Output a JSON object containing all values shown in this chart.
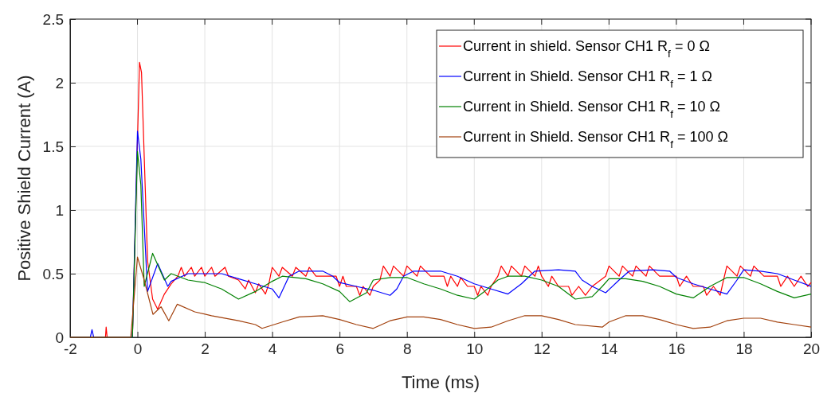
{
  "chart_data": {
    "type": "line",
    "xlabel": "Time (ms)",
    "ylabel": "Positive Shield Current (A)",
    "xlim": [
      -2,
      20
    ],
    "xticks": [
      -2,
      0,
      2,
      4,
      6,
      8,
      10,
      12,
      14,
      16,
      18,
      20
    ],
    "ylim": [
      0,
      2.5
    ],
    "yticks": [
      0,
      0.5,
      1,
      1.5,
      2,
      2.5
    ],
    "grid": true,
    "legend": "top right",
    "line_style": "solid",
    "marker": "none",
    "series": [
      {
        "name": "Current in shield. Sensor CH1 R$_{f}$ = 0 Ω",
        "color": "#ff0000",
        "x": [
          -2,
          -0.95,
          -0.93,
          -0.9,
          -0.15,
          0.06,
          0.12,
          0.3,
          0.45,
          0.6,
          0.8,
          1.0,
          1.2,
          1.3,
          1.4,
          1.6,
          1.7,
          1.9,
          2.0,
          2.2,
          2.3,
          2.6,
          2.7,
          3.0,
          3.2,
          3.3,
          3.5,
          3.6,
          3.8,
          3.9,
          4.0,
          4.2,
          4.3,
          4.6,
          4.7,
          5.0,
          5.1,
          5.3,
          5.9,
          6.0,
          6.1,
          6.2,
          6.5,
          6.6,
          6.7,
          6.9,
          7.0,
          7.2,
          7.3,
          7.5,
          7.6,
          7.9,
          8.0,
          8.3,
          8.4,
          8.7,
          9.1,
          9.2,
          9.3,
          9.5,
          9.6,
          9.8,
          10.0,
          10.1,
          10.2,
          10.4,
          10.5,
          10.7,
          10.8,
          11.0,
          11.1,
          11.4,
          11.5,
          11.8,
          11.9,
          12.0,
          12.2,
          12.3,
          12.5,
          12.8,
          12.9,
          13.1,
          13.3,
          13.5,
          13.9,
          14.0,
          14.3,
          14.4,
          14.7,
          14.8,
          15.1,
          15.2,
          15.5,
          16.0,
          16.1,
          16.3,
          16.5,
          16.8,
          16.9,
          17.1,
          17.3,
          17.4,
          17.5,
          17.8,
          17.9,
          18.2,
          18.3,
          18.6,
          19.0,
          19.1,
          19.3,
          19.5,
          19.7,
          19.9,
          20
        ],
        "values": [
          0,
          0,
          0.08,
          0,
          0,
          2.16,
          2.08,
          0.6,
          0.3,
          0.22,
          0.34,
          0.42,
          0.48,
          0.55,
          0.48,
          0.55,
          0.48,
          0.55,
          0.48,
          0.55,
          0.48,
          0.55,
          0.48,
          0.45,
          0.38,
          0.45,
          0.35,
          0.42,
          0.34,
          0.42,
          0.55,
          0.48,
          0.55,
          0.48,
          0.55,
          0.48,
          0.55,
          0.48,
          0.48,
          0.4,
          0.48,
          0.4,
          0.4,
          0.33,
          0.4,
          0.33,
          0.4,
          0.45,
          0.56,
          0.48,
          0.56,
          0.48,
          0.56,
          0.48,
          0.56,
          0.48,
          0.48,
          0.4,
          0.48,
          0.4,
          0.47,
          0.4,
          0.4,
          0.33,
          0.4,
          0.33,
          0.4,
          0.48,
          0.56,
          0.48,
          0.56,
          0.48,
          0.56,
          0.48,
          0.56,
          0.48,
          0.4,
          0.48,
          0.4,
          0.4,
          0.33,
          0.4,
          0.33,
          0.4,
          0.48,
          0.56,
          0.48,
          0.56,
          0.48,
          0.56,
          0.48,
          0.56,
          0.48,
          0.48,
          0.4,
          0.48,
          0.4,
          0.4,
          0.33,
          0.4,
          0.33,
          0.45,
          0.56,
          0.48,
          0.56,
          0.48,
          0.56,
          0.48,
          0.48,
          0.4,
          0.48,
          0.4,
          0.48,
          0.4,
          0.43
        ]
      },
      {
        "name": "Current in Shield. Sensor CH1 R$_{f}$ = 1 Ω",
        "color": "#0000ff",
        "x": [
          -2,
          -1.4,
          -1.35,
          -1.3,
          -0.15,
          0.0,
          0.1,
          0.3,
          0.6,
          0.9,
          1.0,
          1.5,
          2.0,
          2.5,
          3.0,
          3.5,
          4.0,
          4.2,
          4.5,
          4.8,
          5.5,
          5.8,
          6.0,
          6.5,
          7.0,
          7.5,
          7.7,
          7.9,
          8.2,
          9.0,
          9.5,
          10.0,
          10.5,
          11.0,
          11.4,
          11.8,
          12.5,
          13.0,
          13.2,
          13.5,
          13.9,
          14.3,
          14.6,
          15.3,
          15.8,
          16.0,
          16.5,
          17.0,
          17.5,
          17.8,
          18.0,
          18.5,
          19.0,
          19.5,
          20
        ],
        "values": [
          0,
          0,
          0.06,
          0,
          0,
          1.62,
          1.4,
          0.36,
          0.58,
          0.4,
          0.44,
          0.5,
          0.5,
          0.5,
          0.46,
          0.42,
          0.38,
          0.31,
          0.48,
          0.52,
          0.52,
          0.48,
          0.43,
          0.4,
          0.37,
          0.33,
          0.38,
          0.48,
          0.52,
          0.52,
          0.48,
          0.42,
          0.38,
          0.34,
          0.42,
          0.52,
          0.53,
          0.52,
          0.45,
          0.4,
          0.35,
          0.45,
          0.52,
          0.53,
          0.52,
          0.47,
          0.42,
          0.38,
          0.34,
          0.45,
          0.53,
          0.52,
          0.5,
          0.45,
          0.4
        ]
      },
      {
        "name": "Current in Shield. Sensor CH1 R$_{f}$ = 10 Ω",
        "color": "#008000",
        "x": [
          -2,
          -0.15,
          0.0,
          0.1,
          0.2,
          0.45,
          0.8,
          1.0,
          1.5,
          2.0,
          2.5,
          3.0,
          3.5,
          4.0,
          4.3,
          5.0,
          5.5,
          6.0,
          6.3,
          6.8,
          7.0,
          7.5,
          8.0,
          8.5,
          9.0,
          9.5,
          10.0,
          10.3,
          10.7,
          11.0,
          11.5,
          12.0,
          12.5,
          13.0,
          13.5,
          13.8,
          14.0,
          14.5,
          15.0,
          15.5,
          16.0,
          16.5,
          17.0,
          17.5,
          18.0,
          18.5,
          19.0,
          19.5,
          20
        ],
        "values": [
          0,
          0,
          1.46,
          1.2,
          0.4,
          0.66,
          0.45,
          0.5,
          0.45,
          0.43,
          0.38,
          0.3,
          0.36,
          0.44,
          0.48,
          0.46,
          0.42,
          0.36,
          0.28,
          0.35,
          0.45,
          0.47,
          0.47,
          0.42,
          0.38,
          0.33,
          0.3,
          0.36,
          0.45,
          0.48,
          0.48,
          0.45,
          0.4,
          0.3,
          0.32,
          0.4,
          0.46,
          0.46,
          0.44,
          0.4,
          0.34,
          0.31,
          0.4,
          0.47,
          0.47,
          0.42,
          0.36,
          0.31,
          0.34
        ]
      },
      {
        "name": "Current in Shield. Sensor CH1 R$_{f}$ = 100 Ω",
        "color": "#a2400c",
        "x": [
          -2,
          -0.2,
          0.0,
          0.2,
          0.46,
          0.7,
          0.93,
          1.18,
          1.7,
          2.2,
          3.0,
          3.5,
          3.7,
          4.3,
          4.8,
          5.5,
          6.0,
          6.5,
          7.0,
          7.5,
          8.0,
          8.5,
          9.0,
          9.5,
          10.0,
          10.5,
          11.0,
          11.5,
          12.0,
          12.5,
          13.0,
          13.8,
          14.0,
          14.5,
          15.0,
          15.5,
          16.0,
          16.5,
          17.0,
          17.5,
          18.0,
          18.5,
          19.0,
          19.5,
          20
        ],
        "values": [
          0,
          0,
          0.63,
          0.45,
          0.18,
          0.24,
          0.13,
          0.26,
          0.2,
          0.17,
          0.13,
          0.1,
          0.07,
          0.12,
          0.16,
          0.17,
          0.14,
          0.1,
          0.07,
          0.13,
          0.16,
          0.16,
          0.14,
          0.1,
          0.07,
          0.08,
          0.13,
          0.17,
          0.17,
          0.14,
          0.1,
          0.08,
          0.12,
          0.17,
          0.17,
          0.14,
          0.1,
          0.07,
          0.08,
          0.13,
          0.15,
          0.15,
          0.12,
          0.1,
          0.08
        ]
      }
    ]
  }
}
